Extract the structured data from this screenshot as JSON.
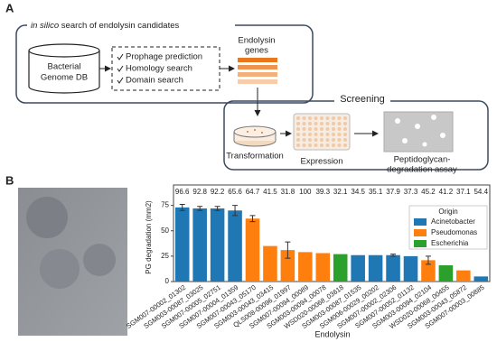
{
  "panel_a": {
    "label": "A",
    "title_italic": "in silico",
    "title_rest": "search of endolysin candidates",
    "database": [
      "Bacterial",
      "Genome DB"
    ],
    "steps": [
      "Prophage prediction",
      "Homology search",
      "Domain search"
    ],
    "genes": [
      "Endolysin",
      "genes"
    ],
    "screening": "Screening",
    "stages": [
      "Transformation",
      "Expression",
      "Peptidoglycan-",
      "degradation assay"
    ]
  },
  "panel_b_label": "B",
  "chart_data": {
    "type": "bar",
    "ylabel": "PG degradation (mm2)",
    "xlabel": "Endolysin",
    "categories": [
      "SGM007-00002_01302",
      "SGM003-00087_03025",
      "SGM007-00005_02751",
      "SGM007-00004_01359",
      "SGM007-00043_05170",
      "SGM003-00043_03415",
      "QLS008-00096_01997",
      "SGM007-00094_00089",
      "SGM003-00094_00078",
      "WSD020-00068_03618",
      "SGM003-00087_01535",
      "SGM006-00029_00202",
      "SGM007-00002_02306",
      "SGM007-00052_01132",
      "SGM003-00094_02104",
      "WSD020-00068_00455",
      "SGM003-00043_05872",
      "SGM007-00003_00885"
    ],
    "top_values": [
      96.6,
      92.8,
      92.2,
      65.6,
      64.7,
      41.5,
      31.8,
      100,
      39.3,
      32.1,
      34.5,
      35.1,
      37.9,
      37.3,
      45.2,
      41.2,
      37.1,
      54.4
    ],
    "legend_title": "Origin",
    "legend": "upper right",
    "series": [
      {
        "name": "Acinetobacter",
        "color": "#1f77b4",
        "values": [
          73,
          72,
          72,
          70,
          null,
          null,
          null,
          null,
          null,
          null,
          26,
          26,
          26,
          25,
          null,
          null,
          null,
          5
        ],
        "errors": [
          3,
          2,
          2,
          5,
          null,
          null,
          null,
          null,
          null,
          null,
          null,
          null,
          1,
          null,
          null,
          null,
          null,
          null
        ]
      },
      {
        "name": "Pseudomonas",
        "color": "#ff7f0e",
        "values": [
          null,
          null,
          null,
          null,
          62,
          35,
          31,
          29,
          28,
          null,
          null,
          null,
          null,
          null,
          21,
          null,
          11,
          null
        ],
        "errors": [
          null,
          null,
          null,
          null,
          3,
          null,
          8,
          null,
          null,
          null,
          null,
          null,
          null,
          null,
          4,
          null,
          null,
          null
        ]
      },
      {
        "name": "Escherichia",
        "color": "#2ca02c",
        "values": [
          null,
          null,
          null,
          null,
          null,
          null,
          null,
          null,
          null,
          27,
          null,
          null,
          null,
          null,
          null,
          16,
          null,
          null
        ],
        "errors": [
          null,
          null,
          null,
          null,
          null,
          null,
          null,
          null,
          null,
          null,
          null,
          null,
          null,
          null,
          null,
          null,
          null,
          null
        ]
      }
    ],
    "ylim": [
      0,
      80
    ],
    "yticks": [
      0,
      25,
      50,
      75
    ]
  }
}
